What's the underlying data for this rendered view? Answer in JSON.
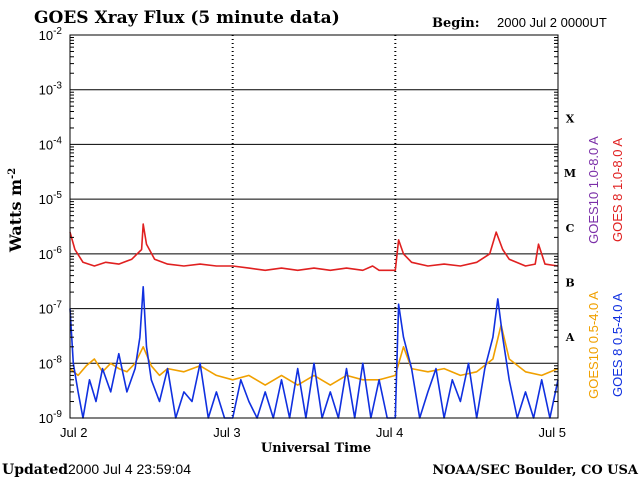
{
  "header": {
    "title": "GOES Xray Flux (5 minute data)",
    "begin_label": "Begin:",
    "begin_value": "2000 Jul 2 0000UT"
  },
  "footer": {
    "updated_label": "Updated",
    "updated_value": "2000 Jul  4 23:59:04",
    "credit": "NOAA/SEC Boulder, CO USA"
  },
  "chart_data": {
    "type": "line",
    "title": "GOES Xray Flux (5 minute data)",
    "xlabel": "Universal Time",
    "ylabel": "Watts m",
    "ylabel_sup": "-2",
    "yscale": "log",
    "ylim": [
      1e-09,
      0.01
    ],
    "y_ticks": [
      {
        "base": "10",
        "exp": "-2",
        "value": 0.01
      },
      {
        "base": "10",
        "exp": "-3",
        "value": 0.001
      },
      {
        "base": "10",
        "exp": "-4",
        "value": 0.0001
      },
      {
        "base": "10",
        "exp": "-5",
        "value": 1e-05
      },
      {
        "base": "10",
        "exp": "-6",
        "value": 1e-06
      },
      {
        "base": "10",
        "exp": "-7",
        "value": 1e-07
      },
      {
        "base": "10",
        "exp": "-8",
        "value": 1e-08
      },
      {
        "base": "10",
        "exp": "-9",
        "value": 1e-09
      }
    ],
    "x_ticks": [
      "Jul 2",
      "Jul 3",
      "Jul 4",
      "Jul 5"
    ],
    "xlim_days": [
      0,
      3
    ],
    "grid": "horizontal at decades, dotted vertical at day boundaries",
    "flare_classes": [
      {
        "label": "X",
        "value": 0.0003
      },
      {
        "label": "M",
        "value": 3e-05
      },
      {
        "label": "C",
        "value": 3e-06
      },
      {
        "label": "B",
        "value": 3e-07
      },
      {
        "label": "A",
        "value": 3e-08
      }
    ],
    "legend": [
      {
        "text": "GOES10 1.0-8.0 A",
        "color": "#7b2fa8"
      },
      {
        "text": "GOES 8 1.0-8.0 A",
        "color": "#e02020"
      },
      {
        "text": "GOES10 0.5-4.0 A",
        "color": "#f0a000"
      },
      {
        "text": "GOES 8 0.5-4.0 A",
        "color": "#1030e0"
      }
    ],
    "legend_position": "right, rotated vertical",
    "series": [
      {
        "name": "GOES 8 1.0-8.0 A",
        "color": "#e02020",
        "x": [
          0.0,
          0.03,
          0.08,
          0.15,
          0.22,
          0.3,
          0.38,
          0.44,
          0.45,
          0.47,
          0.52,
          0.6,
          0.7,
          0.8,
          0.9,
          1.0,
          1.1,
          1.2,
          1.3,
          1.4,
          1.5,
          1.6,
          1.7,
          1.8,
          1.86,
          1.9,
          2.0,
          2.02,
          2.05,
          2.1,
          2.2,
          2.3,
          2.4,
          2.5,
          2.58,
          2.62,
          2.66,
          2.7,
          2.8,
          2.86,
          2.88,
          2.92,
          3.0
        ],
        "y": [
          2.5e-06,
          1.2e-06,
          7e-07,
          6e-07,
          7e-07,
          6.5e-07,
          8e-07,
          1.2e-06,
          3.5e-06,
          1.5e-06,
          8e-07,
          6.5e-07,
          6e-07,
          6.5e-07,
          6e-07,
          6e-07,
          5.5e-07,
          5e-07,
          5.5e-07,
          5e-07,
          5.5e-07,
          5e-07,
          5.5e-07,
          5e-07,
          6e-07,
          5e-07,
          5e-07,
          1.8e-06,
          1e-06,
          7e-07,
          6e-07,
          6.5e-07,
          6e-07,
          7e-07,
          1e-06,
          2.5e-06,
          1.2e-06,
          8e-07,
          6e-07,
          6.5e-07,
          1.5e-06,
          6.5e-07,
          6e-07
        ]
      },
      {
        "name": "GOES 8 0.5-4.0 A",
        "color": "#1030e0",
        "x": [
          0.0,
          0.02,
          0.05,
          0.08,
          0.12,
          0.16,
          0.2,
          0.25,
          0.3,
          0.35,
          0.4,
          0.43,
          0.45,
          0.47,
          0.5,
          0.55,
          0.6,
          0.65,
          0.7,
          0.75,
          0.8,
          0.85,
          0.9,
          0.95,
          1.0,
          1.05,
          1.1,
          1.15,
          1.2,
          1.25,
          1.3,
          1.35,
          1.4,
          1.45,
          1.5,
          1.55,
          1.6,
          1.65,
          1.7,
          1.75,
          1.8,
          1.85,
          1.9,
          1.95,
          2.0,
          2.02,
          2.05,
          2.1,
          2.15,
          2.2,
          2.25,
          2.3,
          2.35,
          2.4,
          2.45,
          2.5,
          2.55,
          2.6,
          2.63,
          2.66,
          2.7,
          2.75,
          2.8,
          2.85,
          2.9,
          2.95,
          3.0
        ],
        "y": [
          1e-07,
          1e-08,
          3e-09,
          1e-09,
          5e-09,
          2e-09,
          8e-09,
          3e-09,
          1.5e-08,
          3e-09,
          8e-09,
          3e-08,
          2.5e-07,
          2e-08,
          5e-09,
          2e-09,
          8e-09,
          1e-09,
          3e-09,
          2e-09,
          1e-08,
          1e-09,
          3e-09,
          1e-09,
          1e-09,
          5e-09,
          2e-09,
          1e-09,
          3e-09,
          1e-09,
          5e-09,
          1e-09,
          8e-09,
          1e-09,
          1e-08,
          1e-09,
          3e-09,
          1e-09,
          8e-09,
          1e-09,
          1e-08,
          1e-09,
          5e-09,
          1e-09,
          1e-09,
          1.2e-07,
          3e-08,
          8e-09,
          1e-09,
          3e-09,
          8e-09,
          1e-09,
          5e-09,
          2e-09,
          1e-08,
          1e-09,
          8e-09,
          3e-08,
          1.5e-07,
          3e-08,
          5e-09,
          1e-09,
          3e-09,
          1e-09,
          5e-09,
          1e-09,
          5e-09
        ]
      },
      {
        "name": "GOES10 0.5-4.0 A",
        "color": "#f0a000",
        "x": [
          0.0,
          0.05,
          0.1,
          0.15,
          0.2,
          0.25,
          0.3,
          0.35,
          0.4,
          0.45,
          0.5,
          0.55,
          0.6,
          0.7,
          0.8,
          0.9,
          1.0,
          1.1,
          1.2,
          1.3,
          1.4,
          1.5,
          1.6,
          1.7,
          1.8,
          1.9,
          2.0,
          2.05,
          2.1,
          2.2,
          2.3,
          2.4,
          2.5,
          2.6,
          2.65,
          2.7,
          2.8,
          2.9,
          3.0
        ],
        "y": [
          8e-09,
          6e-09,
          9e-09,
          1.2e-08,
          7e-09,
          1e-08,
          8e-09,
          7e-09,
          1e-08,
          2e-08,
          9e-09,
          6e-09,
          8e-09,
          7e-09,
          9e-09,
          6e-09,
          5e-09,
          6e-09,
          4e-09,
          6e-09,
          4e-09,
          6e-09,
          4e-09,
          6e-09,
          5e-09,
          5e-09,
          6e-09,
          2e-08,
          8e-09,
          7e-09,
          8e-09,
          6e-09,
          7e-09,
          1.2e-08,
          5e-08,
          1.2e-08,
          7e-09,
          6e-09,
          8e-09
        ]
      }
    ]
  }
}
